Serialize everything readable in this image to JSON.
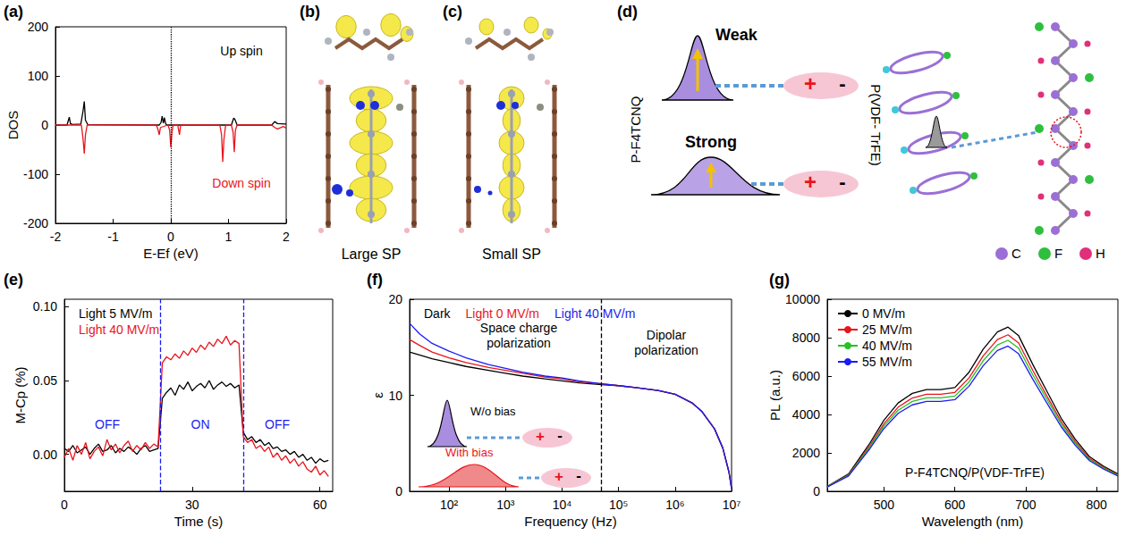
{
  "chart_data": [
    {
      "panel": "(a)",
      "type": "line",
      "x_label": "E-Ef (eV)",
      "y_label": "DOS",
      "xlim": [
        -2,
        2
      ],
      "xticks": [
        -2,
        -1,
        0,
        1,
        2
      ],
      "ylim": [
        -200,
        200
      ],
      "yticks": [
        -200,
        -100,
        0,
        100,
        200
      ],
      "grid": false,
      "legend": "right",
      "reference_lines": [
        0
      ],
      "series": [
        {
          "name": "Up spin",
          "color": "#000000",
          "x": [
            -2,
            -1.8,
            -1.76,
            -1.74,
            -1.7,
            -1.56,
            -1.52,
            -1.5,
            -1.48,
            -1.44,
            -0.2,
            -0.17,
            -0.15,
            -0.13,
            -0.11,
            -0.09,
            -0.07,
            1.05,
            1.09,
            1.11,
            1.15,
            1.75,
            1.8,
            1.85,
            2
          ],
          "values": [
            0,
            0,
            16,
            3,
            1,
            2,
            30,
            48,
            10,
            1,
            0,
            5,
            18,
            4,
            15,
            3,
            0,
            0,
            14,
            12,
            0,
            0,
            7,
            3,
            2
          ]
        },
        {
          "name": "Down spin",
          "color": "#e8141c",
          "x": [
            -2,
            -1.55,
            -1.52,
            -1.5,
            -1.48,
            -1.45,
            -0.25,
            -0.22,
            -0.2,
            -0.18,
            -0.05,
            -0.02,
            0,
            0.02,
            0.04,
            0.12,
            0.15,
            0.17,
            0.85,
            0.88,
            0.9,
            0.92,
            0.95,
            1.05,
            1.08,
            1.1,
            1.12,
            1.15,
            1.75,
            1.8,
            1.85,
            1.95,
            2
          ],
          "values": [
            0,
            0,
            -30,
            -58,
            -20,
            0,
            0,
            -10,
            -20,
            -5,
            0,
            -10,
            -45,
            -15,
            0,
            0,
            -20,
            0,
            0,
            -20,
            -75,
            -30,
            0,
            0,
            -15,
            -55,
            -10,
            0,
            0,
            -5,
            -8,
            -3,
            -6
          ]
        }
      ]
    },
    {
      "panel": "(e)",
      "type": "line",
      "x_label": "Time (s)",
      "y_label": "M-Cp (%)",
      "xlim": [
        0,
        63
      ],
      "xticks": [
        0,
        30,
        60
      ],
      "ylim": [
        -0.025,
        0.105
      ],
      "yticks": [
        {
          "value": 0,
          "label": "0.00"
        },
        {
          "value": 0.05,
          "label": "0.05"
        },
        {
          "value": 0.1,
          "label": "0.10"
        }
      ],
      "grid": false,
      "legend": "top-left",
      "reference_lines": [
        22.5,
        42
      ],
      "annotations": [
        {
          "text": "OFF",
          "color": "#1c1cf0"
        },
        {
          "text": "ON",
          "color": "#1c1cf0"
        },
        {
          "text": "OFF",
          "color": "#1c1cf0"
        }
      ],
      "x": [
        0,
        1,
        2,
        3,
        4,
        5,
        6,
        7,
        8,
        9,
        10,
        11,
        12,
        13,
        14,
        15,
        16,
        17,
        18,
        19,
        20,
        21,
        22,
        23,
        24,
        25,
        26,
        27,
        28,
        29,
        30,
        31,
        32,
        33,
        34,
        35,
        36,
        37,
        38,
        39,
        40,
        41,
        42,
        43,
        44,
        45,
        46,
        47,
        48,
        49,
        50,
        51,
        52,
        53,
        54,
        55,
        56,
        57,
        58,
        59,
        60,
        61,
        62
      ],
      "series": [
        {
          "name": "Light 5 MV/m",
          "color": "#000000",
          "values": [
            0.004,
            0.002,
            0.006,
            0.001,
            0.003,
            0.005,
            0.0,
            0.004,
            0.007,
            0.002,
            0.003,
            0.006,
            0.001,
            0.004,
            0.002,
            0.005,
            0.003,
            0.0,
            0.004,
            0.006,
            0.002,
            0.003,
            0.004,
            0.038,
            0.042,
            0.045,
            0.04,
            0.047,
            0.044,
            0.049,
            0.043,
            0.046,
            0.048,
            0.045,
            0.05,
            0.044,
            0.047,
            0.049,
            0.046,
            0.048,
            0.045,
            0.047,
            0.015,
            0.01,
            0.012,
            0.008,
            0.01,
            0.006,
            0.008,
            0.004,
            0.005,
            0.002,
            0.003,
            0.0,
            0.002,
            -0.002,
            0.0,
            -0.004,
            -0.002,
            -0.006,
            -0.003,
            -0.005,
            -0.004
          ]
        },
        {
          "name": "Light 40 MV/m",
          "color": "#e8141c",
          "values": [
            -0.002,
            0.004,
            -0.004,
            0.006,
            0.0,
            0.008,
            -0.003,
            0.002,
            0.005,
            -0.001,
            0.01,
            0.003,
            0.007,
            0.001,
            0.006,
            0.009,
            0.002,
            0.006,
            0.003,
            0.008,
            0.004,
            0.007,
            0.005,
            0.062,
            0.066,
            0.064,
            0.068,
            0.065,
            0.07,
            0.067,
            0.072,
            0.069,
            0.074,
            0.071,
            0.076,
            0.073,
            0.078,
            0.075,
            0.08,
            0.074,
            0.077,
            0.075,
            0.012,
            0.008,
            0.01,
            0.004,
            0.006,
            0.002,
            0.005,
            -0.002,
            0.001,
            -0.004,
            -0.001,
            -0.006,
            -0.003,
            -0.008,
            -0.005,
            -0.01,
            -0.012,
            -0.008,
            -0.014,
            -0.011,
            -0.015
          ]
        }
      ]
    },
    {
      "panel": "(f)",
      "type": "line",
      "x_label": "Frequency (Hz)",
      "y_label": "ε",
      "log": "x",
      "xlim": [
        20,
        10000000
      ],
      "xticks": [
        {
          "value": 100,
          "label": "10²"
        },
        {
          "value": 1000,
          "label": "10³"
        },
        {
          "value": 10000,
          "label": "10⁴"
        },
        {
          "value": 100000,
          "label": "10⁵"
        },
        {
          "value": 1000000,
          "label": "10⁶"
        },
        {
          "value": 10000000,
          "label": "10⁷"
        }
      ],
      "ylim": [
        0,
        20
      ],
      "yticks": [
        0,
        10,
        20
      ],
      "grid": false,
      "legend": "top-left",
      "reference_lines": [
        50000
      ],
      "annotations": [
        {
          "text": "Space charge polarization",
          "color": "#000000"
        },
        {
          "text": "Dipolar polarization",
          "color": "#000000"
        }
      ],
      "insets": [
        {
          "text": "W/o bias",
          "color": "#000000"
        },
        {
          "text": "With bias",
          "color": "#e8141c"
        }
      ],
      "dipole": {
        "plus": "+",
        "minus": "-"
      },
      "x": [
        20,
        30,
        50,
        100,
        200,
        500,
        1000,
        2000,
        5000,
        10000,
        20000,
        50000,
        100000,
        200000,
        500000,
        1000000,
        2000000,
        3000000,
        5000000,
        7000000,
        9000000,
        10000000
      ],
      "series": [
        {
          "name": "Dark",
          "color": "#000000",
          "values": [
            14.5,
            14.2,
            13.8,
            13.4,
            13.0,
            12.6,
            12.3,
            12.0,
            11.7,
            11.5,
            11.3,
            11.1,
            11.0,
            10.8,
            10.5,
            10.1,
            9.2,
            8.3,
            6.5,
            4.5,
            2.0,
            0.3
          ]
        },
        {
          "name": "Light 0 MV/m",
          "color": "#e8141c",
          "values": [
            15.8,
            15.2,
            14.5,
            13.9,
            13.4,
            12.9,
            12.6,
            12.3,
            11.9,
            11.7,
            11.4,
            11.2,
            11.0,
            10.8,
            10.5,
            10.1,
            9.2,
            8.3,
            6.5,
            4.5,
            2.0,
            0.3
          ]
        },
        {
          "name": "Light 40 MV/m",
          "color": "#1c1cf0",
          "values": [
            17.5,
            16.4,
            15.4,
            14.6,
            13.9,
            13.2,
            12.8,
            12.4,
            12.0,
            11.8,
            11.5,
            11.2,
            11.0,
            10.8,
            10.5,
            10.1,
            9.2,
            8.3,
            6.5,
            4.5,
            2.0,
            0.3
          ]
        }
      ]
    },
    {
      "panel": "(g)",
      "type": "line",
      "x_label": "Wavelength (nm)",
      "y_label": "PL (a.u.)",
      "xlim": [
        420,
        830
      ],
      "xticks": [
        500,
        600,
        700,
        800
      ],
      "ylim": [
        0,
        10000
      ],
      "yticks": [
        0,
        2000,
        4000,
        6000,
        8000,
        10000
      ],
      "grid": false,
      "legend": "top-left",
      "annotations": [
        {
          "text": "P-F4TCNQ/P(VDF-TrFE)",
          "color": "#000000"
        }
      ],
      "x": [
        420,
        450,
        480,
        500,
        520,
        540,
        560,
        580,
        600,
        620,
        640,
        660,
        675,
        690,
        710,
        730,
        750,
        770,
        790,
        810,
        830
      ],
      "series": [
        {
          "name": "0 MV/m",
          "color": "#000000",
          "values": [
            250,
            900,
            2500,
            3700,
            4600,
            5100,
            5300,
            5300,
            5400,
            6200,
            7400,
            8300,
            8550,
            8100,
            6600,
            5200,
            3800,
            2700,
            1800,
            1300,
            900
          ]
        },
        {
          "name": "25 MV/m",
          "color": "#e8141c",
          "values": [
            240,
            860,
            2380,
            3520,
            4380,
            4860,
            5050,
            5050,
            5150,
            5900,
            7050,
            7900,
            8150,
            7720,
            6290,
            4950,
            3620,
            2570,
            1710,
            1240,
            860
          ]
        },
        {
          "name": "40 MV/m",
          "color": "#22c322",
          "values": [
            230,
            830,
            2300,
            3400,
            4220,
            4680,
            4870,
            4870,
            4960,
            5690,
            6800,
            7620,
            7860,
            7450,
            6060,
            4780,
            3490,
            2480,
            1650,
            1190,
            830
          ]
        },
        {
          "name": "55 MV/m",
          "color": "#1c1cf0",
          "values": [
            220,
            800,
            2210,
            3270,
            4060,
            4500,
            4680,
            4680,
            4770,
            5470,
            6540,
            7330,
            7560,
            7160,
            5830,
            4590,
            3360,
            2390,
            1590,
            1150,
            800
          ]
        }
      ]
    }
  ],
  "diagrams": [
    {
      "panel": "(b)",
      "caption": "Large SP"
    },
    {
      "panel": "(c)",
      "caption": "Small SP"
    },
    {
      "panel": "(d)",
      "weak": "Weak",
      "strong": "Strong",
      "left_label": "P-F4TCNQ",
      "right_label": "P(VDF- TrFE)",
      "dipole": {
        "plus": "+",
        "minus": "-"
      },
      "atoms": [
        {
          "symbol": "C",
          "color": "#9b6fd6"
        },
        {
          "symbol": "F",
          "color": "#2fbf3f"
        },
        {
          "symbol": "H",
          "color": "#e0307a"
        }
      ]
    }
  ]
}
